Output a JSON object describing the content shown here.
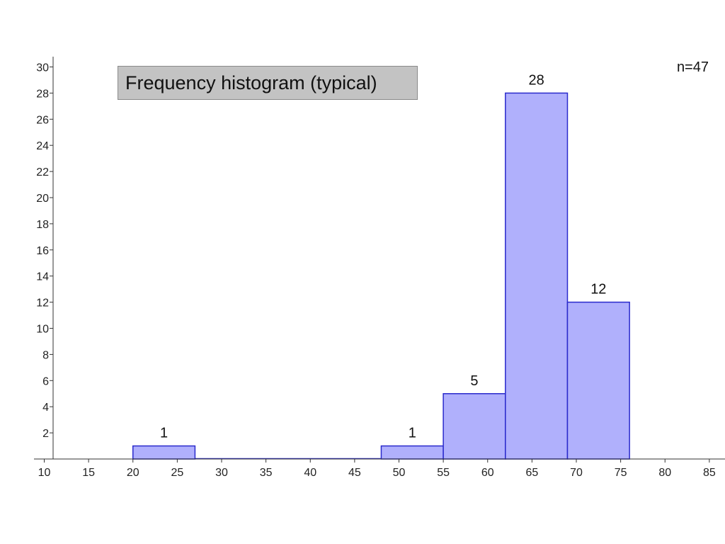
{
  "chart_data": {
    "type": "bar",
    "title": "Frequency histogram (typical)",
    "annotation": "n=47",
    "bins": [
      {
        "x0": 20,
        "x1": 27,
        "value": 1,
        "label": "1"
      },
      {
        "x0": 27,
        "x1": 48,
        "value": 0
      },
      {
        "x0": 48,
        "x1": 55,
        "value": 1,
        "label": "1"
      },
      {
        "x0": 55,
        "x1": 62,
        "value": 5,
        "label": "5"
      },
      {
        "x0": 62,
        "x1": 69,
        "value": 28,
        "label": "28"
      },
      {
        "x0": 69,
        "x1": 76,
        "value": 12,
        "label": "12"
      }
    ],
    "x_ticks": [
      10,
      15,
      20,
      25,
      30,
      35,
      40,
      45,
      50,
      55,
      60,
      65,
      70,
      75,
      80,
      85
    ],
    "y_ticks": [
      2,
      4,
      6,
      8,
      10,
      12,
      14,
      16,
      18,
      20,
      22,
      24,
      26,
      28,
      30
    ],
    "xlim": [
      10,
      86
    ],
    "ylim": [
      0,
      30
    ],
    "bar_fill": "#b0b0fc",
    "bar_stroke": "#2a2acc",
    "grid": false
  }
}
